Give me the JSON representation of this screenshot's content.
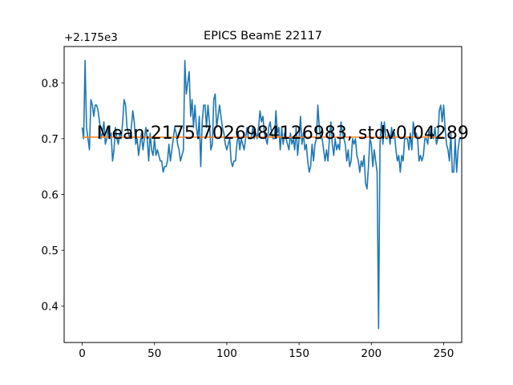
{
  "chart_data": {
    "type": "line",
    "title": "EPICS BeamE 22117",
    "xlabel": "",
    "ylabel": "",
    "y_offset_label": "+2.175e3",
    "xlim": [
      -12.5,
      262.5
    ],
    "ylim": [
      0.335,
      0.865
    ],
    "x_ticks": [
      0,
      50,
      100,
      150,
      200,
      250
    ],
    "y_ticks": [
      0.4,
      0.5,
      0.6,
      0.7,
      0.8
    ],
    "y_tick_labels": [
      "0.4",
      "0.5",
      "0.6",
      "0.7",
      "0.8"
    ],
    "grid": false,
    "annotation": {
      "text": "Mean:2175.7026984126983, stdv0.04289",
      "x": 10,
      "y": 0.7
    },
    "series": [
      {
        "color": "#1f77b4",
        "x_start": 0,
        "x_step": 1,
        "values": [
          0.72,
          0.7,
          0.84,
          0.72,
          0.7,
          0.68,
          0.77,
          0.76,
          0.74,
          0.76,
          0.76,
          0.75,
          0.73,
          0.7,
          0.71,
          0.73,
          0.69,
          0.7,
          0.72,
          0.7,
          0.71,
          0.66,
          0.68,
          0.72,
          0.7,
          0.69,
          0.71,
          0.7,
          0.73,
          0.77,
          0.76,
          0.72,
          0.71,
          0.7,
          0.72,
          0.75,
          0.73,
          0.69,
          0.7,
          0.67,
          0.69,
          0.71,
          0.68,
          0.7,
          0.72,
          0.7,
          0.66,
          0.71,
          0.68,
          0.67,
          0.7,
          0.67,
          0.68,
          0.67,
          0.66,
          0.66,
          0.64,
          0.65,
          0.65,
          0.66,
          0.69,
          0.66,
          0.68,
          0.7,
          0.72,
          0.71,
          0.69,
          0.68,
          0.66,
          0.67,
          0.68,
          0.84,
          0.78,
          0.8,
          0.82,
          0.74,
          0.77,
          0.72,
          0.76,
          0.72,
          0.7,
          0.74,
          0.65,
          0.73,
          0.76,
          0.76,
          0.72,
          0.76,
          0.73,
          0.68,
          0.69,
          0.77,
          0.78,
          0.72,
          0.74,
          0.76,
          0.74,
          0.72,
          0.71,
          0.69,
          0.68,
          0.69,
          0.7,
          0.66,
          0.65,
          0.66,
          0.66,
          0.69,
          0.71,
          0.68,
          0.7,
          0.69,
          0.68,
          0.7,
          0.72,
          0.7,
          0.7,
          0.7,
          0.72,
          0.7,
          0.71,
          0.7,
          0.72,
          0.75,
          0.73,
          0.74,
          0.71,
          0.7,
          0.69,
          0.72,
          0.73,
          0.71,
          0.7,
          0.7,
          0.75,
          0.71,
          0.72,
          0.68,
          0.72,
          0.69,
          0.71,
          0.7,
          0.69,
          0.68,
          0.71,
          0.69,
          0.7,
          0.68,
          0.72,
          0.67,
          0.7,
          0.74,
          0.69,
          0.71,
          0.68,
          0.69,
          0.66,
          0.64,
          0.65,
          0.69,
          0.66,
          0.69,
          0.7,
          0.76,
          0.72,
          0.7,
          0.7,
          0.68,
          0.66,
          0.68,
          0.66,
          0.7,
          0.73,
          0.69,
          0.67,
          0.7,
          0.68,
          0.69,
          0.68,
          0.73,
          0.71,
          0.7,
          0.69,
          0.66,
          0.68,
          0.65,
          0.66,
          0.7,
          0.69,
          0.7,
          0.67,
          0.66,
          0.64,
          0.66,
          0.65,
          0.67,
          0.62,
          0.61,
          0.65,
          0.7,
          0.69,
          0.65,
          0.68,
          0.66,
          0.64,
          0.36,
          0.69,
          0.73,
          0.69,
          0.73,
          0.7,
          0.7,
          0.71,
          0.69,
          0.72,
          0.7,
          0.71,
          0.68,
          0.66,
          0.67,
          0.64,
          0.67,
          0.66,
          0.7,
          0.7,
          0.7,
          0.68,
          0.71,
          0.68,
          0.73,
          0.71,
          0.71,
          0.7,
          0.66,
          0.67,
          0.66,
          0.67,
          0.7,
          0.7,
          0.69,
          0.72,
          0.7,
          0.71,
          0.7,
          0.72,
          0.69,
          0.7,
          0.75,
          0.76,
          0.73,
          0.76,
          0.72,
          0.69,
          0.68,
          0.66,
          0.71,
          0.64,
          0.64,
          0.7,
          0.64,
          0.68,
          0.7,
          0.7
        ]
      },
      {
        "color": "#ff7f0e",
        "x": [
          0,
          250
        ],
        "values": [
          0.7027,
          0.7027
        ]
      }
    ]
  }
}
